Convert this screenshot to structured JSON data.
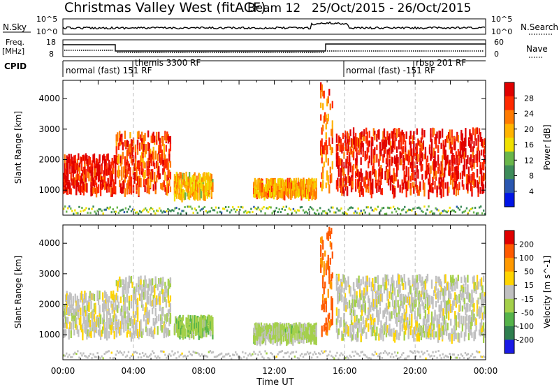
{
  "header": {
    "title": "Christmas Valley West (fitACF)",
    "beam": "Beam 12",
    "dates": "25/Oct/2015 - 26/Oct/2015"
  },
  "panels": {
    "nsky_label": "N.Sky",
    "nsearch_label": "N.Search",
    "freq_label_1": "Freq.",
    "freq_label_2": "[MHz]",
    "nave_label": "Nave",
    "cpid_label": "CPID",
    "nsky_ticks": [
      "10^5",
      "10^0"
    ],
    "nsearch_ticks": [
      "10^5",
      "10^0"
    ],
    "freq_ticks": [
      "18",
      "8"
    ],
    "nave_ticks": [
      "60",
      "0"
    ]
  },
  "cpid_segments": [
    {
      "text": "normal (fast) 151 RF"
    },
    {
      "text": "themis 3300 RF"
    },
    {
      "text": "normal (fast) -151 RF"
    },
    {
      "text": "rbsp 201 RF"
    }
  ],
  "colors": {
    "power_scale": [
      "#0014e6",
      "#2a57b0",
      "#3d8c5a",
      "#69b64a",
      "#f0e000",
      "#ffb400",
      "#ff7a00",
      "#ff2a00",
      "#e00000"
    ],
    "velocity_scale": [
      "#1a1ae6",
      "#2f7f4f",
      "#55b34a",
      "#a4d04a",
      "#c0c0c0",
      "#ffd400",
      "#ff9900",
      "#ff5a00",
      "#e00000"
    ]
  },
  "chart_data": [
    {
      "type": "heatmap",
      "title": "",
      "xlabel": "Time UT",
      "ylabel": "Slant Range [km]",
      "x_ticks": [
        "00:00",
        "04:00",
        "08:00",
        "12:00",
        "16:00",
        "20:00",
        "00:00"
      ],
      "xlim_hours": [
        0,
        24
      ],
      "y_ticks": [
        "1000",
        "2000",
        "3000",
        "4000"
      ],
      "ylim_km": [
        180,
        4600
      ],
      "colorbar": {
        "label": "Power [dB]",
        "ticks": [
          "4",
          "8",
          "12",
          "16",
          "20",
          "24",
          "28"
        ],
        "range": [
          0,
          30
        ]
      },
      "scatter_regions": [
        {
          "t0": 0.0,
          "t1": 3.0,
          "r0": 1000,
          "r1": 2150,
          "level": 27
        },
        {
          "t0": 3.0,
          "t1": 6.1,
          "r0": 1000,
          "r1": 2900,
          "level": 24
        },
        {
          "t0": 6.3,
          "t1": 8.5,
          "r0": 820,
          "r1": 1550,
          "level": 18
        },
        {
          "t0": 10.8,
          "t1": 14.4,
          "r0": 880,
          "r1": 1350,
          "level": 19
        },
        {
          "t0": 14.6,
          "t1": 15.3,
          "r0": 1100,
          "r1": 4500,
          "level": 22
        },
        {
          "t0": 15.5,
          "t1": 24.0,
          "r0": 950,
          "r1": 3000,
          "level": 27
        }
      ]
    },
    {
      "type": "heatmap",
      "title": "",
      "xlabel": "Time UT",
      "ylabel": "Slant Range [km]",
      "x_ticks": [
        "00:00",
        "04:00",
        "08:00",
        "12:00",
        "16:00",
        "20:00",
        "00:00"
      ],
      "xlim_hours": [
        0,
        24
      ],
      "y_ticks": [
        "1000",
        "2000",
        "3000",
        "4000"
      ],
      "ylim_km": [
        180,
        4600
      ],
      "colorbar": {
        "label": "Velocity [m s^-1]",
        "ticks": [
          "200",
          "100",
          "50",
          "15",
          "-15",
          "-50",
          "-100",
          "-200"
        ],
        "range": [
          -250,
          250
        ]
      },
      "scatter_regions": [
        {
          "t0": 0.0,
          "t1": 3.0,
          "r0": 1050,
          "r1": 2400,
          "level": 0
        },
        {
          "t0": 3.0,
          "t1": 6.1,
          "r0": 1000,
          "r1": 2900,
          "level": 0
        },
        {
          "t0": 6.3,
          "t1": 8.5,
          "r0": 1050,
          "r1": 1600,
          "level": -60
        },
        {
          "t0": 10.8,
          "t1": 14.4,
          "r0": 880,
          "r1": 1350,
          "level": -45
        },
        {
          "t0": 14.6,
          "t1": 15.3,
          "r0": 1100,
          "r1": 4500,
          "level": 150
        },
        {
          "t0": 15.5,
          "t1": 24.0,
          "r0": 950,
          "r1": 2950,
          "level": 0
        }
      ]
    }
  ]
}
